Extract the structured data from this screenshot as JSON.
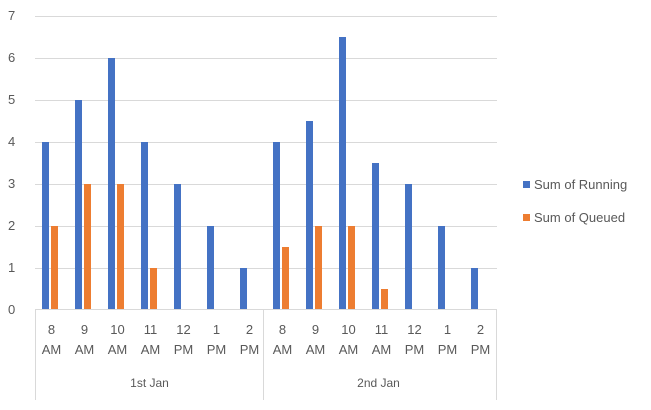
{
  "chart_data": {
    "type": "bar",
    "title": "",
    "xlabel": "",
    "ylabel": "",
    "ylim": [
      0,
      7
    ],
    "yticks": [
      0,
      1,
      2,
      3,
      4,
      5,
      6,
      7
    ],
    "grid": true,
    "legend_position": "right",
    "groups": [
      {
        "label": "1st Jan",
        "categories": [
          "8 AM",
          "9 AM",
          "10 AM",
          "11 AM",
          "12 PM",
          "1 PM",
          "2 PM"
        ]
      },
      {
        "label": "2nd Jan",
        "categories": [
          "8 AM",
          "9 AM",
          "10 AM",
          "11 AM",
          "12 PM",
          "1 PM",
          "2 PM"
        ]
      }
    ],
    "categories": [
      "1st Jan 8 AM",
      "1st Jan 9 AM",
      "1st Jan 10 AM",
      "1st Jan 11 AM",
      "1st Jan 12 PM",
      "1st Jan 1 PM",
      "1st Jan 2 PM",
      "2nd Jan 8 AM",
      "2nd Jan 9 AM",
      "2nd Jan 10 AM",
      "2nd Jan 11 AM",
      "2nd Jan 12 PM",
      "2nd Jan 1 PM",
      "2nd Jan 2 PM"
    ],
    "series": [
      {
        "name": "Sum of Running",
        "color": "#4472c4",
        "values": [
          4,
          5,
          6,
          4,
          3,
          2,
          1,
          4,
          4.5,
          6.5,
          3.5,
          3,
          2,
          1
        ]
      },
      {
        "name": "Sum of Queued",
        "color": "#ed7d31",
        "values": [
          2,
          3,
          3,
          1,
          0,
          0,
          0,
          1.5,
          2,
          2,
          0.5,
          0,
          0,
          0
        ]
      }
    ]
  },
  "legend": {
    "running": "Sum of Running",
    "queued": "Sum of Queued"
  },
  "colors": {
    "running": "#4472c4",
    "queued": "#ed7d31",
    "grid": "#d9d9d9",
    "text": "#595959"
  }
}
